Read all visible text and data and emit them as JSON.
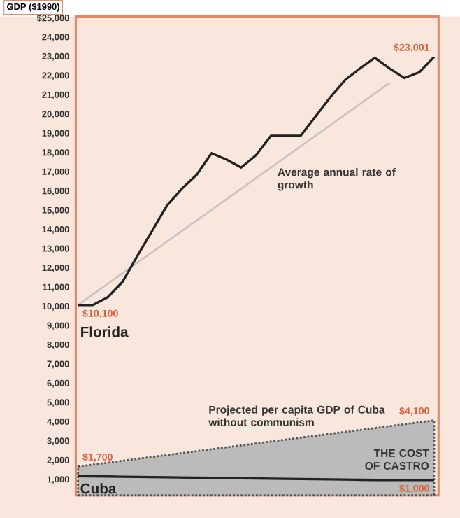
{
  "chart_data": {
    "type": "line",
    "ylabel": "GDP ($1990)",
    "legend": false,
    "tick_labels": "y",
    "ylim": [
      200,
      25100
    ],
    "categories": [
      null,
      null,
      null,
      null,
      null,
      null,
      null,
      null,
      null,
      null,
      null,
      null,
      null,
      null,
      null,
      null,
      null,
      null,
      null,
      null,
      null,
      null,
      null,
      null,
      null
    ],
    "yticks": [
      {
        "value": 25000,
        "label": "$25,000"
      },
      {
        "value": 24000,
        "label": "24,000"
      },
      {
        "value": 23000,
        "label": "23,000"
      },
      {
        "value": 22000,
        "label": "22,000"
      },
      {
        "value": 21000,
        "label": "21,000"
      },
      {
        "value": 20000,
        "label": "20,000"
      },
      {
        "value": 19000,
        "label": "19,000"
      },
      {
        "value": 18000,
        "label": "18,000"
      },
      {
        "value": 17000,
        "label": "17,000"
      },
      {
        "value": 16000,
        "label": "16,000"
      },
      {
        "value": 15000,
        "label": "15,000"
      },
      {
        "value": 14000,
        "label": "14,000"
      },
      {
        "value": 13000,
        "label": "13,000"
      },
      {
        "value": 12000,
        "label": "12,000"
      },
      {
        "value": 11000,
        "label": "11,000"
      },
      {
        "value": 10000,
        "label": "10,000"
      },
      {
        "value": 9000,
        "label": "9,000"
      },
      {
        "value": 8000,
        "label": "8,000"
      },
      {
        "value": 7000,
        "label": "7,000"
      },
      {
        "value": 6000,
        "label": "6,000"
      },
      {
        "value": 5000,
        "label": "5,000"
      },
      {
        "value": 4000,
        "label": "4,000"
      },
      {
        "value": 3000,
        "label": "3,000"
      },
      {
        "value": 2000,
        "label": "2,000"
      },
      {
        "value": 1000,
        "label": "1,000"
      }
    ],
    "series": [
      {
        "type": "area",
        "color": "#555555",
        "line_style": "dotted",
        "values": [
          1700,
          1800,
          1900,
          2000,
          2100,
          2200,
          2300,
          2400,
          2500,
          2600,
          2700,
          2800,
          2900,
          3000,
          3100,
          3200,
          3300,
          3400,
          3500,
          3600,
          3700,
          3800,
          3900,
          4000,
          4100
        ],
        "value_labels": [
          "$1,700",
          null,
          null,
          null,
          null,
          null,
          null,
          null,
          null,
          null,
          null,
          null,
          null,
          null,
          null,
          null,
          null,
          null,
          null,
          null,
          null,
          null,
          null,
          null,
          "$4,100"
        ]
      },
      {
        "color": "#c4c4c4",
        "line_style": "solid",
        "values": [
          10100,
          10650,
          11200,
          11750,
          12300,
          12850,
          13400,
          13950,
          14500,
          15050,
          15600,
          16150,
          16700,
          17250,
          17800,
          18350,
          18900,
          19450,
          20000,
          20550,
          21100,
          21650,
          null,
          null,
          null
        ]
      },
      {
        "name": "Florida",
        "color": "#222222",
        "line_style": "solid",
        "values": [
          10100,
          10100,
          10500,
          11300,
          12650,
          13960,
          15280,
          16150,
          16880,
          18000,
          17670,
          17250,
          17900,
          18900,
          18900,
          18900,
          19900,
          20900,
          21800,
          22400,
          22950,
          22400,
          21900,
          22200,
          23001
        ],
        "value_labels": [
          "$10,100",
          null,
          null,
          null,
          null,
          null,
          null,
          null,
          null,
          null,
          null,
          null,
          null,
          null,
          null,
          null,
          null,
          null,
          null,
          null,
          null,
          null,
          null,
          null,
          "$23,001"
        ]
      },
      {
        "name": "Cuba",
        "color": "#222222",
        "line_style": "solid",
        "values": [
          1200,
          1190,
          1180,
          1170,
          1160,
          1150,
          1140,
          1130,
          1120,
          1110,
          1100,
          1090,
          1080,
          1070,
          1060,
          1050,
          1040,
          1030,
          1020,
          1010,
          1000,
          1000,
          1000,
          1000,
          1000
        ],
        "value_labels": [
          null,
          null,
          null,
          null,
          null,
          null,
          null,
          null,
          null,
          null,
          null,
          null,
          null,
          null,
          null,
          null,
          null,
          null,
          null,
          null,
          null,
          null,
          null,
          null,
          "$1,000"
        ]
      }
    ],
    "annotations": [
      "Average annual rate of growth",
      "Projected per capita GDP of Cuba without communism",
      "THE COST OF CASTRO"
    ]
  }
}
